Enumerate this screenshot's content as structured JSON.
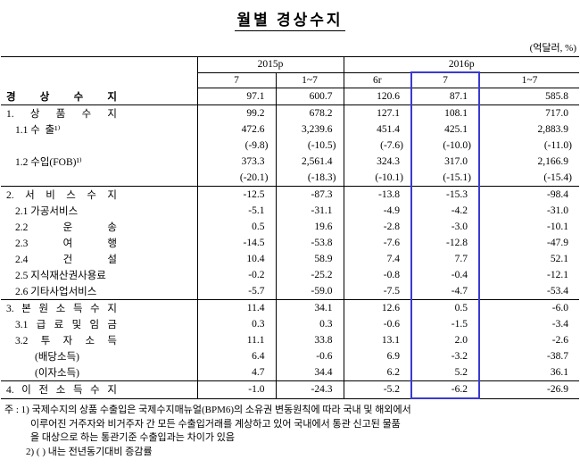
{
  "title": "월별 경상수지",
  "unit_label": "(억달러, %)",
  "table": {
    "col_groups": [
      {
        "label": "2015p",
        "cols": [
          "7",
          "1~7"
        ]
      },
      {
        "label": "2016p",
        "cols": [
          "6r",
          "7",
          "1~7"
        ]
      }
    ],
    "highlight_col_index": 3,
    "highlight_color": "#3a3ad0",
    "rows": [
      {
        "label": "경 상 수 지",
        "indent": 0,
        "bold": true,
        "spread": true,
        "rule_above": false,
        "values": [
          "97.1",
          "600.7",
          "120.6",
          "87.1",
          "585.8"
        ]
      },
      {
        "label": "1. 상 품 수 지",
        "indent": 0,
        "bold": false,
        "spread": true,
        "rule_above": true,
        "values": [
          "99.2",
          "678.2",
          "127.1",
          "108.1",
          "717.0"
        ]
      },
      {
        "label": "1.1 수  출¹⁾",
        "indent": 1,
        "bold": false,
        "spread": false,
        "rule_above": false,
        "values": [
          "472.6",
          "3,239.6",
          "451.4",
          "425.1",
          "2,883.9"
        ]
      },
      {
        "label": "",
        "indent": 1,
        "bold": false,
        "spread": false,
        "rule_above": false,
        "values": [
          "(-9.8)",
          "(-10.5)",
          "(-7.6)",
          "(-10.0)",
          "(-11.0)"
        ]
      },
      {
        "label": "1.2 수입(FOB)¹⁾",
        "indent": 1,
        "bold": false,
        "spread": false,
        "rule_above": false,
        "values": [
          "373.3",
          "2,561.4",
          "324.3",
          "317.0",
          "2,166.9"
        ]
      },
      {
        "label": "",
        "indent": 1,
        "bold": false,
        "spread": false,
        "rule_above": false,
        "values": [
          "(-20.1)",
          "(-18.3)",
          "(-10.1)",
          "(-15.1)",
          "(-15.4)"
        ]
      },
      {
        "label": "2. 서 비 스 수 지",
        "indent": 0,
        "bold": false,
        "spread": true,
        "rule_above": true,
        "values": [
          "-12.5",
          "-87.3",
          "-13.8",
          "-15.3",
          "-98.4"
        ]
      },
      {
        "label": "2.1 가공서비스",
        "indent": 1,
        "bold": false,
        "spread": false,
        "rule_above": false,
        "values": [
          "-5.1",
          "-31.1",
          "-4.9",
          "-4.2",
          "-31.0"
        ]
      },
      {
        "label": "2.2 운 송",
        "indent": 1,
        "bold": false,
        "spread": true,
        "rule_above": false,
        "values": [
          "0.5",
          "19.6",
          "-2.8",
          "-3.0",
          "-10.1"
        ]
      },
      {
        "label": "2.3 여 행",
        "indent": 1,
        "bold": false,
        "spread": true,
        "rule_above": false,
        "values": [
          "-14.5",
          "-53.8",
          "-7.6",
          "-12.8",
          "-47.9"
        ]
      },
      {
        "label": "2.4 건 설",
        "indent": 1,
        "bold": false,
        "spread": true,
        "rule_above": false,
        "values": [
          "10.4",
          "58.9",
          "7.4",
          "7.7",
          "52.1"
        ]
      },
      {
        "label": "2.5 지식재산권사용료",
        "indent": 1,
        "bold": false,
        "spread": false,
        "rule_above": false,
        "values": [
          "-0.2",
          "-25.2",
          "-0.8",
          "-0.4",
          "-12.1"
        ]
      },
      {
        "label": "2.6 기타사업서비스",
        "indent": 1,
        "bold": false,
        "spread": false,
        "rule_above": false,
        "values": [
          "-5.7",
          "-59.0",
          "-7.5",
          "-4.7",
          "-53.4"
        ]
      },
      {
        "label": "3. 본 원 소 득 수 지",
        "indent": 0,
        "bold": false,
        "spread": true,
        "rule_above": true,
        "values": [
          "11.4",
          "34.1",
          "12.6",
          "0.5",
          "-6.0"
        ]
      },
      {
        "label": "3.1 급 료 및 임 금",
        "indent": 1,
        "bold": false,
        "spread": true,
        "rule_above": false,
        "values": [
          "0.3",
          "0.3",
          "-0.6",
          "-1.5",
          "-3.4"
        ]
      },
      {
        "label": "3.2 투 자 소 득",
        "indent": 1,
        "bold": false,
        "spread": true,
        "rule_above": false,
        "values": [
          "11.1",
          "33.8",
          "13.1",
          "2.0",
          "-2.6"
        ]
      },
      {
        "label": "(배당소득)",
        "indent": 2,
        "bold": false,
        "spread": false,
        "rule_above": false,
        "values": [
          "6.4",
          "-0.6",
          "6.9",
          "-3.2",
          "-38.7"
        ]
      },
      {
        "label": "(이자소득)",
        "indent": 2,
        "bold": false,
        "spread": false,
        "rule_above": false,
        "values": [
          "4.7",
          "34.4",
          "6.2",
          "5.2",
          "36.1"
        ]
      },
      {
        "label": "4. 이 전 소 득 수 지",
        "indent": 0,
        "bold": false,
        "spread": true,
        "rule_above": true,
        "values": [
          "-1.0",
          "-24.3",
          "-5.2",
          "-6.2",
          "-26.9"
        ]
      }
    ]
  },
  "footnotes": [
    "주 : 1) 국제수지의 상품 수출입은 국제수지매뉴얼(BPM6)의 소유권 변동원칙에 따라 국내 및 해외에서",
    "이루어진 거주자와 비거주자 간 모든 수출입거래를 계상하고 있어 국내에서 통관 신고된 물품",
    "을 대상으로 하는 통관기준 수출입과는 차이가 있음",
    "2) (  ) 내는 전년동기대비 증감률"
  ]
}
